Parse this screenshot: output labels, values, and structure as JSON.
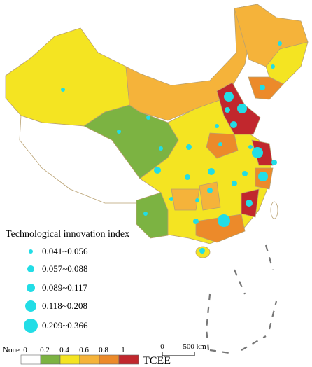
{
  "bubble_legend": {
    "title": "Technological innovation index",
    "classes": [
      "0.041~0.056",
      "0.057~0.088",
      "0.089~0.117",
      "0.118~0.208",
      "0.209~0.366"
    ]
  },
  "color_scale": {
    "labels": [
      "None",
      "0",
      "0.2",
      "0.4",
      "0.6",
      "0.8",
      "1"
    ],
    "title": "TCEE",
    "colors": [
      "#ffffff",
      "#7cb342",
      "#f4e422",
      "#f5b33a",
      "#ec8a2a",
      "#c1272d"
    ]
  },
  "scale_bar": {
    "labels": [
      "0",
      "500 km"
    ]
  }
}
